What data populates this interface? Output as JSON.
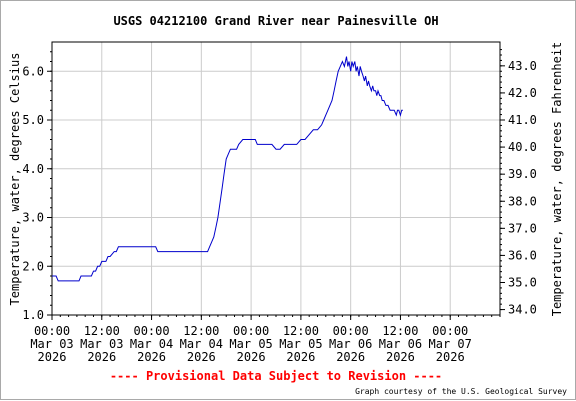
{
  "chart_data": {
    "type": "line",
    "title": "USGS 04212100 Grand River near Painesville OH",
    "ylabel": "Temperature, water, degrees Celsius",
    "y2label": "Temperature, water, degrees Fahrenheit",
    "ylim": [
      1.0,
      6.6
    ],
    "y2lim": [
      33.8,
      43.88
    ],
    "xlim_hours": [
      0,
      108
    ],
    "yticks": [
      "1.0",
      "2.0",
      "3.0",
      "4.0",
      "5.0",
      "6.0"
    ],
    "y2ticks": [
      "34.0",
      "35.0",
      "36.0",
      "37.0",
      "38.0",
      "39.0",
      "40.0",
      "41.0",
      "42.0",
      "43.0"
    ],
    "xticks": [
      {
        "time": "00:00",
        "date": "Mar 03",
        "year": "2026"
      },
      {
        "time": "12:00",
        "date": "Mar 03",
        "year": "2026"
      },
      {
        "time": "00:00",
        "date": "Mar 04",
        "year": "2026"
      },
      {
        "time": "12:00",
        "date": "Mar 04",
        "year": "2026"
      },
      {
        "time": "00:00",
        "date": "Mar 05",
        "year": "2026"
      },
      {
        "time": "12:00",
        "date": "Mar 05",
        "year": "2026"
      },
      {
        "time": "00:00",
        "date": "Mar 06",
        "year": "2026"
      },
      {
        "time": "12:00",
        "date": "Mar 06",
        "year": "2026"
      },
      {
        "time": "00:00",
        "date": "Mar 07",
        "year": "2026"
      }
    ],
    "grid": true,
    "series": [
      {
        "color": "#0000cc",
        "x": [
          0,
          1,
          1.5,
          6.5,
          7,
          9.5,
          10,
          10.5,
          11,
          11.5,
          12,
          13,
          13.5,
          14,
          15,
          15.5,
          16,
          17,
          17.5,
          18,
          25,
          25.5,
          37,
          37.5,
          38,
          38.5,
          39,
          39.5,
          40,
          40.5,
          41,
          41.5,
          42,
          42.5,
          43,
          43.5,
          44,
          44.5,
          45,
          46,
          47,
          49,
          49.5,
          53,
          54,
          55,
          56,
          57,
          58,
          59,
          60,
          61,
          62,
          63,
          64,
          65,
          65.5,
          66,
          66.5,
          67,
          67.5,
          68,
          68.5,
          69,
          69.5,
          70,
          70.5,
          71,
          71.3,
          71.6,
          72,
          72.3,
          72.6,
          73,
          73.3,
          73.6,
          74,
          74.3,
          74.6,
          75,
          75.3,
          75.6,
          76,
          76.3,
          76.6,
          77,
          77.3,
          77.6,
          78,
          78.3,
          78.6,
          79,
          79.3,
          79.6,
          80,
          80.5,
          81,
          81.5,
          82,
          82.5,
          83,
          83.3,
          83.6,
          84,
          84.3,
          84.6
        ],
        "y": [
          1.8,
          1.8,
          1.7,
          1.7,
          1.8,
          1.8,
          1.9,
          1.9,
          2.0,
          2.0,
          2.1,
          2.1,
          2.2,
          2.2,
          2.3,
          2.3,
          2.4,
          2.4,
          2.4,
          2.4,
          2.4,
          2.3,
          2.3,
          2.3,
          2.4,
          2.5,
          2.6,
          2.8,
          3.0,
          3.3,
          3.6,
          3.9,
          4.2,
          4.3,
          4.4,
          4.4,
          4.4,
          4.4,
          4.5,
          4.6,
          4.6,
          4.6,
          4.5,
          4.5,
          4.4,
          4.4,
          4.5,
          4.5,
          4.5,
          4.5,
          4.6,
          4.6,
          4.7,
          4.8,
          4.8,
          4.9,
          5.0,
          5.1,
          5.2,
          5.3,
          5.4,
          5.6,
          5.8,
          6.0,
          6.1,
          6.2,
          6.1,
          6.3,
          6.1,
          6.2,
          6.0,
          6.2,
          6.1,
          6.2,
          6.0,
          6.1,
          5.9,
          6.1,
          6.0,
          5.9,
          5.8,
          5.9,
          5.7,
          5.8,
          5.7,
          5.6,
          5.7,
          5.6,
          5.6,
          5.5,
          5.6,
          5.5,
          5.5,
          5.4,
          5.4,
          5.3,
          5.3,
          5.2,
          5.2,
          5.2,
          5.1,
          5.2,
          5.2,
          5.1,
          5.2,
          5.2
        ]
      }
    ]
  },
  "footer": {
    "provisional_text": "---- Provisional Data Subject to Revision ----",
    "credit_text": "Graph courtesy of the U.S. Geological Survey"
  },
  "colors": {
    "line": "#0000cc",
    "grid": "#cccccc",
    "provisional": "#ff0000"
  }
}
